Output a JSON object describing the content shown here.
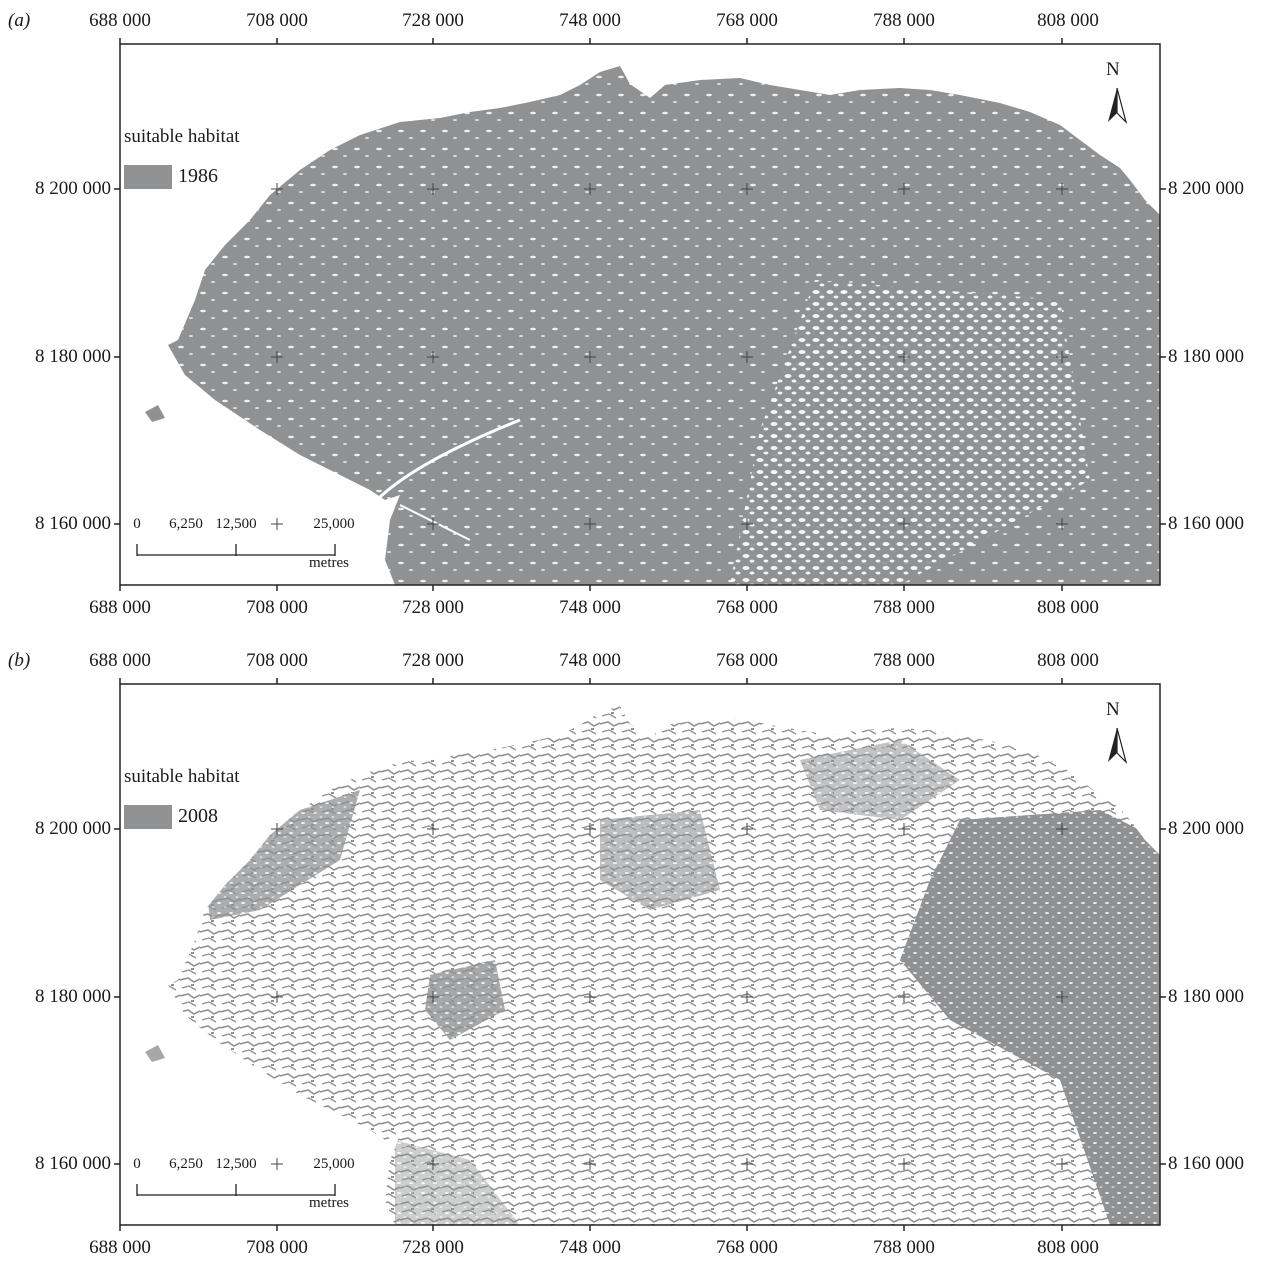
{
  "colors": {
    "habitat": "#909193",
    "frame": "#222222",
    "background": "#ffffff"
  },
  "x_ticks": [
    "688 000",
    "708 000",
    "728 000",
    "748 000",
    "768 000",
    "788 000",
    "808 000"
  ],
  "y_ticks": [
    "8 200 000",
    "8 180 000",
    "8 160 000"
  ],
  "panels": [
    {
      "label": "(a)",
      "legend_title": "suitable habitat",
      "legend_year": "1986",
      "north": "N",
      "scale": {
        "labels": [
          "0",
          "6,250",
          "12,500",
          "25,000"
        ],
        "unit": "metres"
      },
      "habitat_coverage": 0.85
    },
    {
      "label": "(b)",
      "legend_title": "suitable habitat",
      "legend_year": "2008",
      "north": "N",
      "scale": {
        "labels": [
          "0",
          "6,250",
          "12,500",
          "25,000"
        ],
        "unit": "metres"
      },
      "habitat_coverage": 0.45
    }
  ],
  "icons": {
    "north_arrow": "north-arrow-icon",
    "grid_cross": "plus-icon"
  }
}
